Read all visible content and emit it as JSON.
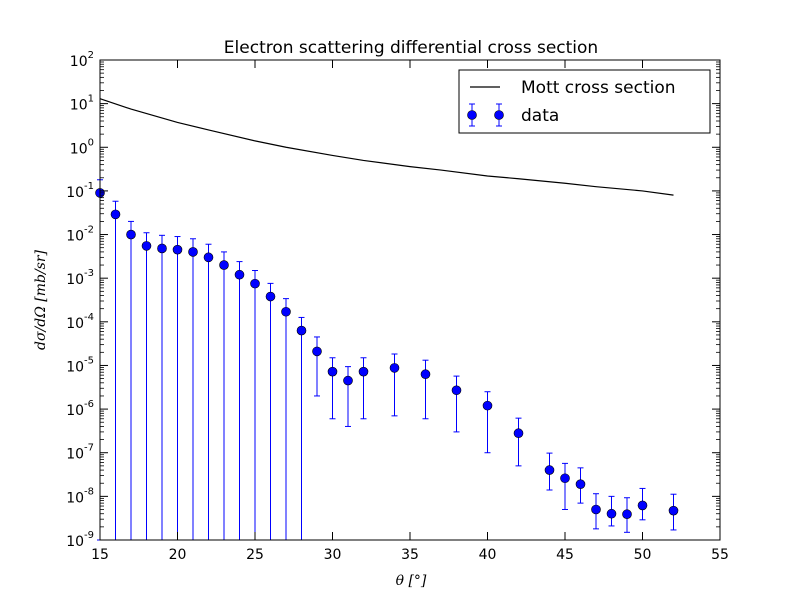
{
  "chart_data": {
    "type": "scatter",
    "title": "Electron scattering differential cross section",
    "xlabel": "θ [°]",
    "ylabel": "dσ/dΩ [mb/sr]",
    "xlim": [
      15,
      55
    ],
    "ylim_exponents": [
      -9,
      2
    ],
    "y_scale": "log",
    "x_ticks": [
      "15",
      "20",
      "25",
      "30",
      "35",
      "40",
      "45",
      "50",
      "55"
    ],
    "y_ticks": [
      {
        "base": "10",
        "exp": "-9"
      },
      {
        "base": "10",
        "exp": "-8"
      },
      {
        "base": "10",
        "exp": "-7"
      },
      {
        "base": "10",
        "exp": "-6"
      },
      {
        "base": "10",
        "exp": "-5"
      },
      {
        "base": "10",
        "exp": "-4"
      },
      {
        "base": "10",
        "exp": "-3"
      },
      {
        "base": "10",
        "exp": "-2"
      },
      {
        "base": "10",
        "exp": "-1"
      },
      {
        "base": "10",
        "exp": "0"
      },
      {
        "base": "10",
        "exp": "1"
      },
      {
        "base": "10",
        "exp": "2"
      }
    ],
    "legend_position": "top-right",
    "series": [
      {
        "name": "Mott cross section",
        "kind": "line",
        "color": "#000000",
        "x": [
          15,
          17,
          20,
          22,
          25,
          27,
          30,
          32,
          35,
          37,
          40,
          42,
          45,
          47,
          50,
          52
        ],
        "y": [
          13,
          7.5,
          3.7,
          2.5,
          1.4,
          1.0,
          0.65,
          0.5,
          0.36,
          0.3,
          0.22,
          0.19,
          0.15,
          0.125,
          0.1,
          0.08
        ]
      },
      {
        "name": "data",
        "kind": "errorbar-scatter",
        "color": "#0000ff",
        "x": [
          15,
          16,
          17,
          18,
          19,
          20,
          21,
          22,
          23,
          24,
          25,
          26,
          27,
          28,
          29,
          30,
          31,
          32,
          34,
          36,
          38,
          40,
          42,
          44,
          45,
          46,
          47,
          48,
          49,
          50,
          52
        ],
        "y": [
          0.09,
          0.029,
          0.01,
          0.0055,
          0.0048,
          0.0045,
          0.004,
          0.003,
          0.002,
          0.0012,
          0.00075,
          0.00038,
          0.00017,
          6.3e-05,
          2.1e-05,
          7.2e-06,
          4.5e-06,
          7.2e-06,
          8.8e-06,
          6.3e-06,
          2.7e-06,
          1.2e-06,
          2.8e-07,
          4e-08,
          2.6e-08,
          1.9e-08,
          5e-09,
          4e-09,
          3.9e-09,
          6.2e-09,
          4.7e-09
        ],
        "err_low": [
          0.09,
          0.029,
          0.01,
          0.0055,
          0.0048,
          0.0045,
          0.004,
          0.003,
          0.002,
          0.0012,
          0.00075,
          0.00038,
          0.00017,
          6.3e-05,
          1.9e-05,
          6.6e-06,
          4.1e-06,
          6.6e-06,
          8.1e-06,
          5.7e-06,
          2.4e-06,
          1.1e-06,
          2.3e-07,
          2.6e-08,
          2.1e-08,
          1.2e-08,
          3.2e-09,
          1.9e-09,
          2.4e-09,
          3.3e-09,
          3e-09
        ],
        "err_high": [
          0.09,
          0.029,
          0.01,
          0.0055,
          0.0048,
          0.0045,
          0.004,
          0.003,
          0.002,
          0.0012,
          0.00075,
          0.00038,
          0.00017,
          6.3e-05,
          2.4e-05,
          7.8e-06,
          4.9e-06,
          7.8e-06,
          9.5e-06,
          6.9e-06,
          3e-06,
          1.3e-06,
          3.4e-07,
          5.8e-08,
          3.1e-08,
          2.6e-08,
          6.5e-09,
          6e-09,
          5.4e-09,
          9e-09,
          6.5e-09
        ]
      }
    ]
  }
}
